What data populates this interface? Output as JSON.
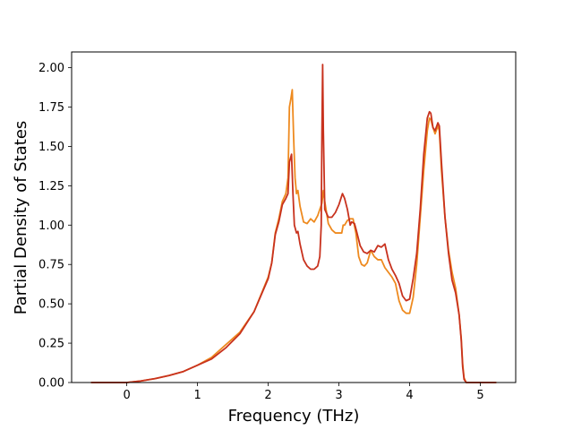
{
  "chart_data": {
    "type": "line",
    "title": "",
    "xlabel": "Frequency (THz)",
    "ylabel": "Partial Density of States",
    "xlim": [
      -0.78,
      5.5
    ],
    "ylim": [
      0,
      2.1
    ],
    "grid": false,
    "x_ticks": [
      0,
      1,
      2,
      3,
      4,
      5
    ],
    "x_tick_labels": [
      "0",
      "1",
      "2",
      "3",
      "4",
      "5"
    ],
    "y_ticks": [
      0,
      0.25,
      0.5,
      0.75,
      1.0,
      1.25,
      1.5,
      1.75,
      2.0
    ],
    "y_tick_labels": [
      "0.00",
      "0.25",
      "0.50",
      "0.75",
      "1.00",
      "1.25",
      "1.50",
      "1.75",
      "2.00"
    ],
    "series": [
      {
        "color": "#ee8a1f",
        "points": [
          [
            -0.5,
            0
          ],
          [
            0,
            0
          ],
          [
            0.2,
            0.01
          ],
          [
            0.4,
            0.025
          ],
          [
            0.6,
            0.045
          ],
          [
            0.8,
            0.07
          ],
          [
            1.0,
            0.11
          ],
          [
            1.2,
            0.16
          ],
          [
            1.4,
            0.24
          ],
          [
            1.6,
            0.32
          ],
          [
            1.8,
            0.45
          ],
          [
            2.0,
            0.67
          ],
          [
            2.05,
            0.76
          ],
          [
            2.1,
            0.95
          ],
          [
            2.15,
            1.04
          ],
          [
            2.2,
            1.15
          ],
          [
            2.25,
            1.2
          ],
          [
            2.28,
            1.3
          ],
          [
            2.3,
            1.75
          ],
          [
            2.32,
            1.8
          ],
          [
            2.34,
            1.86
          ],
          [
            2.36,
            1.55
          ],
          [
            2.38,
            1.3
          ],
          [
            2.4,
            1.2
          ],
          [
            2.42,
            1.22
          ],
          [
            2.45,
            1.12
          ],
          [
            2.5,
            1.02
          ],
          [
            2.55,
            1.01
          ],
          [
            2.6,
            1.04
          ],
          [
            2.65,
            1.02
          ],
          [
            2.7,
            1.06
          ],
          [
            2.73,
            1.1
          ],
          [
            2.76,
            1.14
          ],
          [
            2.78,
            1.22
          ],
          [
            2.8,
            1.15
          ],
          [
            2.85,
            1.01
          ],
          [
            2.9,
            0.97
          ],
          [
            2.95,
            0.95
          ],
          [
            3.0,
            0.95
          ],
          [
            3.04,
            0.95
          ],
          [
            3.06,
            1.0
          ],
          [
            3.08,
            1.0
          ],
          [
            3.12,
            1.03
          ],
          [
            3.16,
            1.04
          ],
          [
            3.2,
            1.04
          ],
          [
            3.24,
            0.95
          ],
          [
            3.28,
            0.8
          ],
          [
            3.32,
            0.75
          ],
          [
            3.36,
            0.74
          ],
          [
            3.4,
            0.76
          ],
          [
            3.45,
            0.84
          ],
          [
            3.5,
            0.8
          ],
          [
            3.55,
            0.78
          ],
          [
            3.6,
            0.78
          ],
          [
            3.65,
            0.73
          ],
          [
            3.7,
            0.7
          ],
          [
            3.75,
            0.67
          ],
          [
            3.8,
            0.63
          ],
          [
            3.85,
            0.52
          ],
          [
            3.9,
            0.46
          ],
          [
            3.95,
            0.44
          ],
          [
            4.0,
            0.44
          ],
          [
            4.05,
            0.54
          ],
          [
            4.1,
            0.75
          ],
          [
            4.15,
            1.05
          ],
          [
            4.2,
            1.35
          ],
          [
            4.25,
            1.6
          ],
          [
            4.28,
            1.68
          ],
          [
            4.3,
            1.67
          ],
          [
            4.33,
            1.62
          ],
          [
            4.36,
            1.58
          ],
          [
            4.4,
            1.63
          ],
          [
            4.42,
            1.6
          ],
          [
            4.45,
            1.35
          ],
          [
            4.5,
            1.05
          ],
          [
            4.55,
            0.84
          ],
          [
            4.6,
            0.7
          ],
          [
            4.65,
            0.6
          ],
          [
            4.7,
            0.43
          ],
          [
            4.73,
            0.28
          ],
          [
            4.75,
            0.12
          ],
          [
            4.77,
            0.03
          ],
          [
            4.8,
            0
          ],
          [
            5.0,
            0
          ],
          [
            5.22,
            0
          ]
        ]
      },
      {
        "color": "#c8321e",
        "points": [
          [
            -0.5,
            0
          ],
          [
            0,
            0
          ],
          [
            0.2,
            0.01
          ],
          [
            0.4,
            0.025
          ],
          [
            0.6,
            0.045
          ],
          [
            0.8,
            0.07
          ],
          [
            1.0,
            0.11
          ],
          [
            1.2,
            0.15
          ],
          [
            1.4,
            0.22
          ],
          [
            1.6,
            0.31
          ],
          [
            1.8,
            0.45
          ],
          [
            2.0,
            0.66
          ],
          [
            2.05,
            0.76
          ],
          [
            2.1,
            0.94
          ],
          [
            2.15,
            1.02
          ],
          [
            2.2,
            1.13
          ],
          [
            2.25,
            1.17
          ],
          [
            2.28,
            1.2
          ],
          [
            2.3,
            1.4
          ],
          [
            2.33,
            1.45
          ],
          [
            2.35,
            1.2
          ],
          [
            2.37,
            1.0
          ],
          [
            2.4,
            0.95
          ],
          [
            2.42,
            0.96
          ],
          [
            2.45,
            0.88
          ],
          [
            2.5,
            0.78
          ],
          [
            2.55,
            0.74
          ],
          [
            2.6,
            0.72
          ],
          [
            2.65,
            0.72
          ],
          [
            2.7,
            0.74
          ],
          [
            2.73,
            0.8
          ],
          [
            2.75,
            1.0
          ],
          [
            2.76,
            1.6
          ],
          [
            2.77,
            2.02
          ],
          [
            2.78,
            1.6
          ],
          [
            2.8,
            1.1
          ],
          [
            2.85,
            1.05
          ],
          [
            2.9,
            1.05
          ],
          [
            2.95,
            1.08
          ],
          [
            3.0,
            1.13
          ],
          [
            3.05,
            1.2
          ],
          [
            3.08,
            1.17
          ],
          [
            3.12,
            1.1
          ],
          [
            3.16,
            1.0
          ],
          [
            3.18,
            1.02
          ],
          [
            3.22,
            1.01
          ],
          [
            3.25,
            0.96
          ],
          [
            3.3,
            0.87
          ],
          [
            3.35,
            0.83
          ],
          [
            3.4,
            0.82
          ],
          [
            3.45,
            0.84
          ],
          [
            3.5,
            0.83
          ],
          [
            3.55,
            0.87
          ],
          [
            3.6,
            0.86
          ],
          [
            3.65,
            0.88
          ],
          [
            3.7,
            0.78
          ],
          [
            3.75,
            0.72
          ],
          [
            3.8,
            0.68
          ],
          [
            3.85,
            0.63
          ],
          [
            3.9,
            0.55
          ],
          [
            3.95,
            0.52
          ],
          [
            4.0,
            0.53
          ],
          [
            4.05,
            0.66
          ],
          [
            4.1,
            0.82
          ],
          [
            4.15,
            1.1
          ],
          [
            4.2,
            1.45
          ],
          [
            4.25,
            1.68
          ],
          [
            4.28,
            1.72
          ],
          [
            4.3,
            1.71
          ],
          [
            4.33,
            1.62
          ],
          [
            4.36,
            1.6
          ],
          [
            4.4,
            1.65
          ],
          [
            4.42,
            1.63
          ],
          [
            4.45,
            1.4
          ],
          [
            4.5,
            1.05
          ],
          [
            4.55,
            0.82
          ],
          [
            4.6,
            0.65
          ],
          [
            4.65,
            0.57
          ],
          [
            4.7,
            0.43
          ],
          [
            4.73,
            0.27
          ],
          [
            4.75,
            0.1
          ],
          [
            4.77,
            0.02
          ],
          [
            4.8,
            0
          ],
          [
            5.0,
            0
          ],
          [
            5.22,
            0
          ]
        ]
      }
    ]
  }
}
